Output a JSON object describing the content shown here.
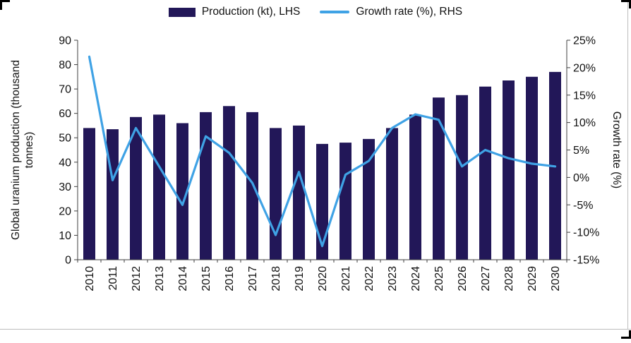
{
  "legend": {
    "items": [
      {
        "label": "Production (kt), LHS"
      },
      {
        "label": "Growth rate (%), RHS"
      }
    ]
  },
  "chart_data": {
    "type": "combo",
    "x": [
      "2010",
      "2011",
      "2012",
      "2013",
      "2014",
      "2015",
      "2016",
      "2017",
      "2018",
      "2019",
      "2020",
      "2021",
      "2022",
      "2023",
      "2024",
      "2025",
      "2026",
      "2027",
      "2028",
      "2029",
      "2030"
    ],
    "series": [
      {
        "name": "Production (kt), LHS",
        "chart": "bar",
        "axis": "left",
        "values": [
          54,
          53.5,
          58.5,
          59.5,
          56,
          60.5,
          63,
          60.5,
          54,
          55,
          47.5,
          48,
          49.5,
          54,
          59.5,
          66.5,
          67.5,
          71,
          73.5,
          75,
          77
        ]
      },
      {
        "name": "Growth rate (%), RHS",
        "chart": "line",
        "axis": "right",
        "values": [
          22,
          -0.5,
          9,
          2,
          -5,
          7.5,
          4.5,
          -1,
          -10.5,
          1,
          -12.5,
          0.5,
          3,
          9,
          11.5,
          10.5,
          2,
          5,
          3.5,
          2.5,
          2
        ]
      }
    ],
    "left_axis": {
      "label_lines": [
        "Global uranium production (thousand",
        "tonnes)"
      ],
      "min": 0,
      "max": 90,
      "tick_step": 10,
      "tick_values": [
        90,
        80,
        70,
        60,
        50,
        40,
        30,
        20,
        10,
        0
      ]
    },
    "right_axis": {
      "label": "Growth rate (%)",
      "min": -15,
      "max": 25,
      "tick_values": [
        25,
        20,
        15,
        10,
        5,
        0,
        -5,
        -10,
        -15
      ],
      "tick_labels": [
        "25%",
        "20%",
        "15%",
        "10%",
        "5%",
        "0%",
        "-5%",
        "-10%",
        "-15%"
      ]
    },
    "colors": {
      "bar": "#221758",
      "line": "#3FA2E5"
    },
    "legend_position": "top",
    "grid": false
  }
}
